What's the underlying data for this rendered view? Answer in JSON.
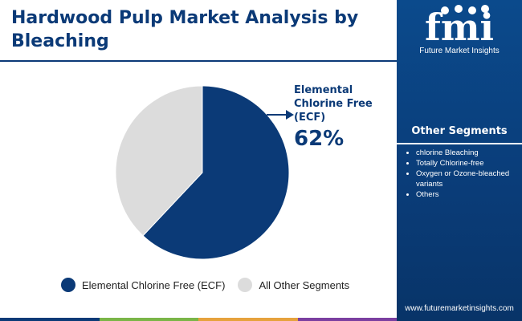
{
  "title": "Hardwood Pulp Market Analysis by Bleaching",
  "chart_data": {
    "type": "pie",
    "title": "Hardwood Pulp Market Analysis by Bleaching",
    "categories": [
      "Elemental Chlorine Free (ECF)",
      "All Other Segments"
    ],
    "values": [
      62,
      38
    ],
    "colors": [
      "#0b3a77",
      "#dcdcdc"
    ],
    "callout": {
      "label": "Elemental Chlorine Free (ECF)",
      "value": "62%"
    },
    "legend_position": "bottom"
  },
  "legend": [
    {
      "label": "Elemental Chlorine Free (ECF)",
      "color": "#0b3a77"
    },
    {
      "label": "All Other Segments",
      "color": "#dcdcdc"
    }
  ],
  "sidebar": {
    "logo_text": "fmi",
    "logo_name": "Future Market Insights",
    "segments_title": "Other Segments",
    "segments": [
      "chlorine Bleaching",
      "Totally Chlorine-free",
      "Oxygen or Ozone-bleached variants",
      "Others"
    ],
    "website": "www.futuremarketinsights.com"
  },
  "bottom_bar_colors": [
    "#0b3a77",
    "#7ab547",
    "#e6a23c",
    "#7b3fa0"
  ]
}
